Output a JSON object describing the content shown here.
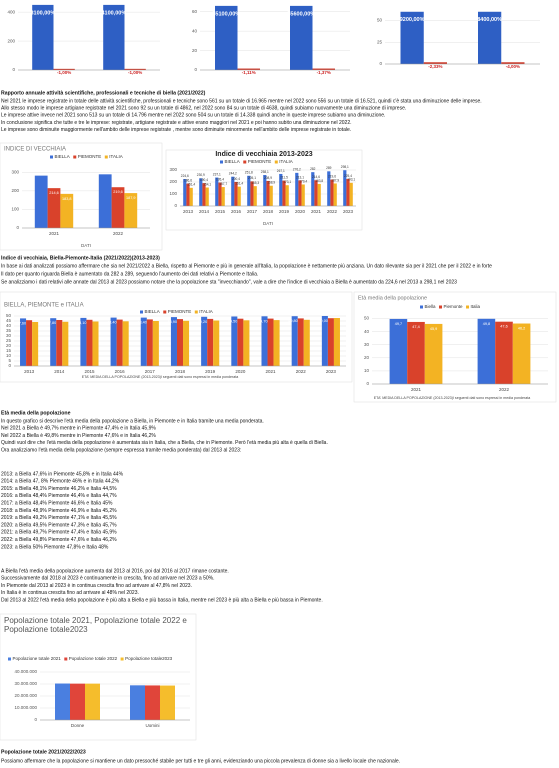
{
  "charts": [
    {
      "type": "bar",
      "ylim": [
        0,
        470
      ],
      "yticks": [
        0,
        200,
        400
      ],
      "grid": true,
      "series": [
        {
          "color": "#2e5fc4",
          "values": [
            450,
            450
          ]
        },
        {
          "color": "#d03a2a",
          "values": [
            8,
            8
          ]
        }
      ],
      "annotations": [
        "3100,00%",
        "4100,00%",
        "-1,00%",
        "-1,00%"
      ]
    },
    {
      "type": "bar",
      "ylim": [
        0,
        70
      ],
      "yticks": [
        0,
        20,
        40,
        60
      ],
      "grid": true,
      "series": [
        {
          "color": "#2e5fc4",
          "values": [
            66,
            66
          ]
        },
        {
          "color": "#d03a2a",
          "values": [
            1.5,
            1.5
          ]
        }
      ],
      "annotations": [
        "55100,00%",
        "55600,00%",
        "-1,11%",
        "-1,37%"
      ]
    },
    {
      "type": "bar",
      "ylim": [
        0,
        85
      ],
      "yticks": [
        0,
        25,
        50,
        75
      ],
      "grid": true,
      "series": [
        {
          "color": "#2e5fc4",
          "values": [
            60,
            60
          ]
        },
        {
          "color": "#d03a2a",
          "values": [
            2,
            2
          ]
        }
      ],
      "annotations": [
        "9200,00%",
        "8400,00%",
        "-2,33%",
        "-4,00%"
      ]
    },
    {
      "type": "bar",
      "title": "INDICE DI VECCHIAIA",
      "x_label": "DATI",
      "categories": [
        "2021",
        "2022"
      ],
      "ylim": [
        0,
        350
      ],
      "yticks": [
        0,
        100,
        200,
        300
      ],
      "grid": true,
      "series": [
        {
          "name": "BIELLA",
          "color": "#3c6fd8",
          "values": [
            282,
            289
          ]
        },
        {
          "name": "PIEMONTE",
          "color": "#d9422b",
          "values": [
            214.6,
            219.6
          ],
          "value_labels": [
            "214,6",
            "219,6"
          ]
        },
        {
          "name": "ITALIA",
          "color": "#f3b323",
          "values": [
            183.8,
            187.9
          ],
          "value_labels": [
            "183,8",
            "187,9"
          ]
        }
      ]
    },
    {
      "type": "bar",
      "title": "Indice di vecchiaia 2013-2023",
      "x_label": "DATI",
      "categories": [
        "2013",
        "2014",
        "2015",
        "2016",
        "2017",
        "2018",
        "2019",
        "2020",
        "2021",
        "2022",
        "2023"
      ],
      "ylim": [
        0,
        300
      ],
      "yticks": [
        0,
        100,
        200,
        300
      ],
      "grid": true,
      "series": [
        {
          "name": "BIELLA",
          "color": "#3c6fd8",
          "values": [
            224.6,
            230.9,
            237.1,
            244.2,
            251.8,
            258.1,
            267.1,
            276.2,
            282,
            289,
            298.1
          ],
          "value_labels": [
            "224,6",
            "230,9",
            "237,1",
            "244,2",
            "251,8",
            "258,1",
            "267,1",
            "276,2",
            "282",
            "289",
            "298,1"
          ]
        },
        {
          "name": "PIEMONTE",
          "color": "#d9422b",
          "values": [
            186.6,
            190.4,
            195.4,
            200.4,
            205.1,
            208.9,
            211.5,
            213.1,
            214.6,
            219.6,
            225.4
          ],
          "value_labels": [
            "186,6",
            "190,4",
            "195,4",
            "200,4",
            "205,1",
            "208,9",
            "211,5",
            "213,1",
            "214,6",
            "219,6",
            "225,4"
          ]
        },
        {
          "name": "ITALIA",
          "color": "#f3b323",
          "values": [
            151.4,
            154.1,
            157.7,
            161.4,
            165.3,
            168.9,
            173.1,
            179.4,
            183.8,
            187.9,
            193.1
          ],
          "value_labels": [
            "151,4",
            "154,1",
            "157,7",
            "161,4",
            "165,3",
            "168,9",
            "173,1",
            "179,4",
            "183,8",
            "187,9",
            "193,1"
          ]
        }
      ]
    },
    {
      "type": "bar",
      "title": "BIELLA, PIEMONTE e ITALIA",
      "note": "ETA' MEDIA DELLA POPOLAZIONE (2013-2023)I seguenti dati sono espressi in media ponderata",
      "categories": [
        "2013",
        "2014",
        "2015",
        "2016",
        "2017",
        "2018",
        "2019",
        "2020",
        "2021",
        "2022",
        "2023"
      ],
      "ylim": [
        0,
        50
      ],
      "yticks": [
        0,
        5,
        10,
        15,
        20,
        25,
        30,
        35,
        40,
        45,
        50
      ],
      "grid": true,
      "series": [
        {
          "name": "BIELLA",
          "color": "#3c6fd8",
          "values": [
            47.6,
            47.8,
            48.1,
            48.4,
            48.4,
            48.9,
            49.2,
            49.5,
            49.7,
            49.8,
            50
          ],
          "value_labels": [
            "47,60%",
            "47,80%",
            "48,10%",
            "48,40%",
            "48,40%",
            "48,90%",
            "49,20%",
            "49,50%",
            "49,70%",
            "49,80%",
            "50,00%"
          ]
        },
        {
          "name": "PIEMONTE",
          "color": "#d9422b",
          "values": [
            45.8,
            46,
            46.2,
            46.4,
            46.6,
            46.9,
            47.1,
            47.3,
            47.4,
            47.6,
            47.8
          ]
        },
        {
          "name": "ITALIA",
          "color": "#f3b323",
          "values": [
            44,
            44.2,
            44.5,
            44.7,
            45,
            45.2,
            45.5,
            45.7,
            45.9,
            46.2,
            48
          ]
        }
      ]
    },
    {
      "type": "bar",
      "title": "Età media della popolazione",
      "note": "ETA' MEDIA DELLA POPOLAZIONE (2013-2023)I seguenti dati sono espressi in media ponderata",
      "categories": [
        "2021",
        "2022"
      ],
      "ylim": [
        0,
        55
      ],
      "yticks": [
        0,
        10,
        20,
        30,
        40,
        50
      ],
      "grid": true,
      "series": [
        {
          "name": "Biella",
          "color": "#3c6fd8",
          "values": [
            49.7,
            49.8
          ],
          "value_labels": [
            "49,7",
            "49,8"
          ]
        },
        {
          "name": "Piemonte",
          "color": "#d9422b",
          "values": [
            47.4,
            47.6
          ],
          "value_labels": [
            "47,4",
            "47,6"
          ]
        },
        {
          "name": "Italia",
          "color": "#f3b323",
          "values": [
            45.9,
            46.2
          ],
          "value_labels": [
            "45,9",
            "46,2"
          ]
        }
      ]
    },
    {
      "type": "bar",
      "title": "Popolazione totale 2021, Popolazione totale 2022 e Popolazione totale2023",
      "categories": [
        "Donne",
        "Uomini"
      ],
      "ylim": [
        0,
        40000000
      ],
      "grid": true,
      "yticks": [
        {
          "value": 0,
          "label": "0"
        },
        {
          "value": 10000000,
          "label": "10.000.000"
        },
        {
          "value": 20000000,
          "label": "20.000.000"
        },
        {
          "value": 30000000,
          "label": "30.000.000"
        },
        {
          "value": 40000000,
          "label": "40.000.000"
        }
      ],
      "series": [
        {
          "name": "Popolazione totale 2021",
          "color": "#4a7fe0",
          "values": [
            30400000,
            28900000
          ]
        },
        {
          "name": "Popolazione totale 2022",
          "color": "#e0453a",
          "values": [
            30300000,
            28800000
          ]
        },
        {
          "name": "Popolazione totale2023",
          "color": "#f5bd2c",
          "values": [
            30300000,
            28700000
          ]
        }
      ]
    }
  ],
  "sections": [
    {
      "heading": "Rapporto annuale attività scientifiche, professionali e tecniche di biella (2021/2022)",
      "lines": [
        "Nel 2021 le imprese registrate in totale delle attività scientifiche, professionali e tecniche sono 561 su un totale di 16.965 mentre nel 2022 sono 556 su un totale di 16.521, quindi c'è stata una diminuzione delle imprese.",
        "Allo stesso modo le imprese artigiane registrate nel 2021 sono 92 su un totale di 4862, nel 2022 sono 84 su un totale di 4638, quindi subiamo nuovamente una diminuzione di imprese.",
        "Le imprese attive invece nel 2021 sono 513 su un totale di 14.796 mentre nel 2022 sono 504 su un totale di 14.338 quindi anche in queste imprese subiamo una diminuzione.",
        "In conclusione significa che tutte e tre le imprese: registrate, artigiane registrate e attive erano maggiori nel 2021 e poi hanno subito una diminuzione nel 2022.",
        "Le imprese sono diminuite maggiormente nell'ambito delle imprese registrate , mentre sono diminuite minormente nell'ambito delle imprese registrate in totale."
      ]
    },
    {
      "heading": "Indice di vecchiaia, Biella-Piemonte-Italia (2021/2022)(2013-2023)",
      "lines": [
        "In base ai dati analizzati possiamo affermare che sia nel 2021/2022 a Biella, rispetto al Piemonte e più in generale all'Italia, la popolazione è nettamente più anziana. Un dato rilevante sia per il 2021 che per il 2022 e in forte",
        "Il dato per quanto riguarda Biella è aumentato da 282 a 289, seguendo l'aumento dei dati relativi a Piemonte e Italia.",
        "Se analizziamo i dati relativi alle annate dal 2013 al 2023 possiamo notare che la popolazione sta \"invecchiando\", vale a dire che l'indice di vecchiaia a Biella è aumentato da 224,6 nel 2013 a 298,1 nel 2023"
      ]
    },
    {
      "heading": "Età media della popolazione",
      "lines": [
        "In questo grafico si descrive l'età media della popolazione a Biella, in Piemonte e in Italia tramite una media ponderata.",
        "Nel 2021 a Biella è 49,7% mentre in Piemonte 47,4% e in Italia 45,9%",
        "Nel 2022 a Biella è 49,8% mentre in Piemonte 47,6% e in Italia 46,2%",
        "Quindi vuol dire che l'età media della popolazione è aumentata sia in Italia, che a Biella, che in Piemonte. Però l'età media più alta è quella di Biella.",
        "Ora analizziamo l'età media della popolazione (sempre espressa tramite media ponderata) dal 2013 al 2023:",
        "2013: a Biella 47,6% in Piemonte 45,8% e in Italia 44%",
        "2014: a Biella 47, 8% Piemonte 46% e in Italia 44,2%",
        "2015: a Biella 48,1% Piemonte 46,2% e Italia 44,5%",
        "2016: a Biella 48,4% Piemonte 46,4% e Italia 44,7%",
        "2017: a Biella 48,4% Piemonte 46,6% e Italia 45%",
        "2018: a Biella 48,9% Piemonte 46,9% e Italia 45,2%",
        "2019: a Biella 49,2% Piemonte 47,1% e Italia 45,5%",
        "2020: a Biella 49,5% Piemonte 47,3% e Italia 45,7%",
        "2021: a Biella 49,7% Piemonte 47,4% e Italia 45,9%",
        "2022: a Biella 49,8% Piemonte 47,6% e Italia 46,2%",
        "2023: a Biella 50% Piemonte 47,8% e Italia 48%",
        "A Biella l'età media della popolazione aumenta dal 2013 al 2016, poi dal 2016 al 2017 rimane costante.",
        "Successivamente dal 2018 al 2023 è continuamente in crescita, fino ad arrivare nel 2023 a 50%.",
        "In Piemonte dal 2013 al 2023 è in continua crescita fino ad arrivare al 47,8% nel 2023.",
        "In Italia è in continua crescita fino ad arrivare al 48% nel 2023.",
        "Dal 2013 al 2022 l'età media della popolazione è più alta a Biella e più bassa in Italia, mentre nel 2023 è più alta a Biella e più bassa in Piemonte."
      ]
    },
    {
      "heading": "Popolazione totale 2021/2022/2023",
      "lines": [
        "Possiamo affermare che la popolazione si mantiene un dato pressoché stabile per tutti e tre gli anni, evidenziando una piccola prevalenza di donne sia a livello locale che nazionale."
      ]
    }
  ]
}
